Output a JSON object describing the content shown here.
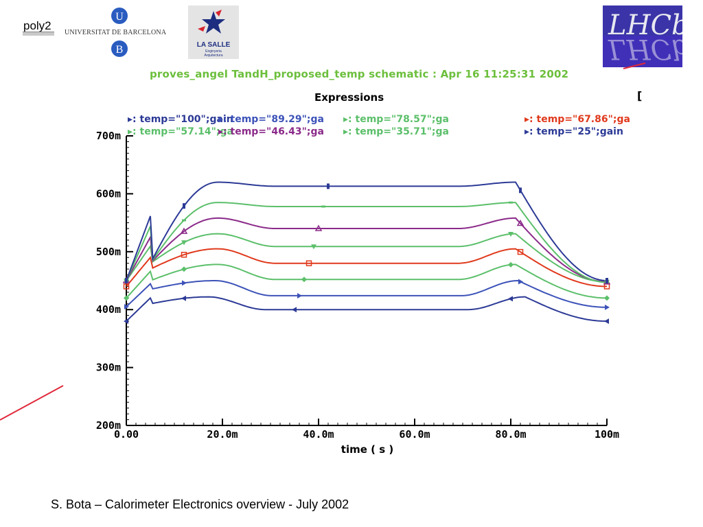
{
  "header": {
    "poly_label": "poly2",
    "university": "UNIVERSITAT DE BARCELONA",
    "ub_letters": [
      "U",
      "B"
    ],
    "lasalle_name": "LA SALLE",
    "lasalle_sub": [
      "Enginyeria",
      "Arquitectura"
    ],
    "lhcb_text": "LHCb"
  },
  "plot_header": "proves_angel TandH_proposed_temp schematic : Apr 16 11:25:31 2002",
  "edge_mark": "[",
  "footer": "S. Bota – Calorimeter Electronics overview - July 2002",
  "colors": {
    "title_green": "#6cbf3c",
    "accent_red": "#e0283a",
    "lhcb_blue": "#3a34a8"
  },
  "chart_data": {
    "type": "line",
    "title": "Expressions",
    "xlabel": "time ( s )",
    "ylabel": "",
    "xlim": [
      0,
      0.1
    ],
    "ylim": [
      0.2,
      0.7
    ],
    "x_ticks": [
      {
        "value": 0.0,
        "label": "0.00"
      },
      {
        "value": 0.02,
        "label": "20.0m"
      },
      {
        "value": 0.04,
        "label": "40.0m"
      },
      {
        "value": 0.06,
        "label": "60.0m"
      },
      {
        "value": 0.08,
        "label": "80.0m"
      },
      {
        "value": 0.1,
        "label": "100m"
      }
    ],
    "y_ticks": [
      {
        "value": 0.2,
        "label": "200m"
      },
      {
        "value": 0.3,
        "label": "300m"
      },
      {
        "value": 0.4,
        "label": "400m"
      },
      {
        "value": 0.5,
        "label": "500m"
      },
      {
        "value": 0.6,
        "label": "600m"
      },
      {
        "value": 0.7,
        "label": "700m"
      }
    ],
    "legend_rows": [
      [
        {
          "text": "temp=\"100\";gain",
          "color": "#2c3a96"
        },
        {
          "text": "temp=\"89.29\";ga",
          "color": "#3c52b8"
        },
        {
          "text": "temp=\"78.57\";ga",
          "color": "#5bbf6a"
        },
        {
          "text": "temp=\"67.86\";ga",
          "color": "#e0391c"
        }
      ],
      [
        {
          "text": "temp=\"57.14\";ga",
          "color": "#5bbf6a"
        },
        {
          "text": "temp=\"46.43\";ga",
          "color": "#8b2a8a"
        },
        {
          "text": "temp=\"35.71\";ga",
          "color": "#5bbf6a"
        },
        {
          "text": "temp=\"25\";gain",
          "color": "#2c3a96"
        }
      ]
    ],
    "series": [
      {
        "color": "#2c3a96",
        "marker": "triangle-left",
        "start": 0.38,
        "bump": 0.422,
        "plateau": 0.4,
        "end": 0.38
      },
      {
        "color": "#3c52b8",
        "marker": "triangle-right",
        "start": 0.405,
        "bump": 0.45,
        "plateau": 0.424,
        "end": 0.404
      },
      {
        "color": "#5bbf6a",
        "marker": "diamond",
        "start": 0.42,
        "bump": 0.478,
        "plateau": 0.452,
        "end": 0.42
      },
      {
        "color": "#e0391c",
        "marker": "square",
        "start": 0.44,
        "bump": 0.505,
        "plateau": 0.48,
        "end": 0.44
      },
      {
        "color": "#5bbf6a",
        "marker": "triangle-down",
        "start": 0.45,
        "bump": 0.531,
        "plateau": 0.509,
        "end": 0.448
      },
      {
        "color": "#8b2a8a",
        "marker": "triangle-up",
        "start": 0.45,
        "bump": 0.558,
        "plateau": 0.54,
        "end": 0.448
      },
      {
        "color": "#5bbf6a",
        "marker": "bar",
        "start": 0.45,
        "bump": 0.585,
        "plateau": 0.578,
        "end": 0.447
      },
      {
        "color": "#2c3a96",
        "marker": "circle",
        "start": 0.45,
        "bump": 0.62,
        "plateau": 0.613,
        "end": 0.45
      }
    ]
  }
}
